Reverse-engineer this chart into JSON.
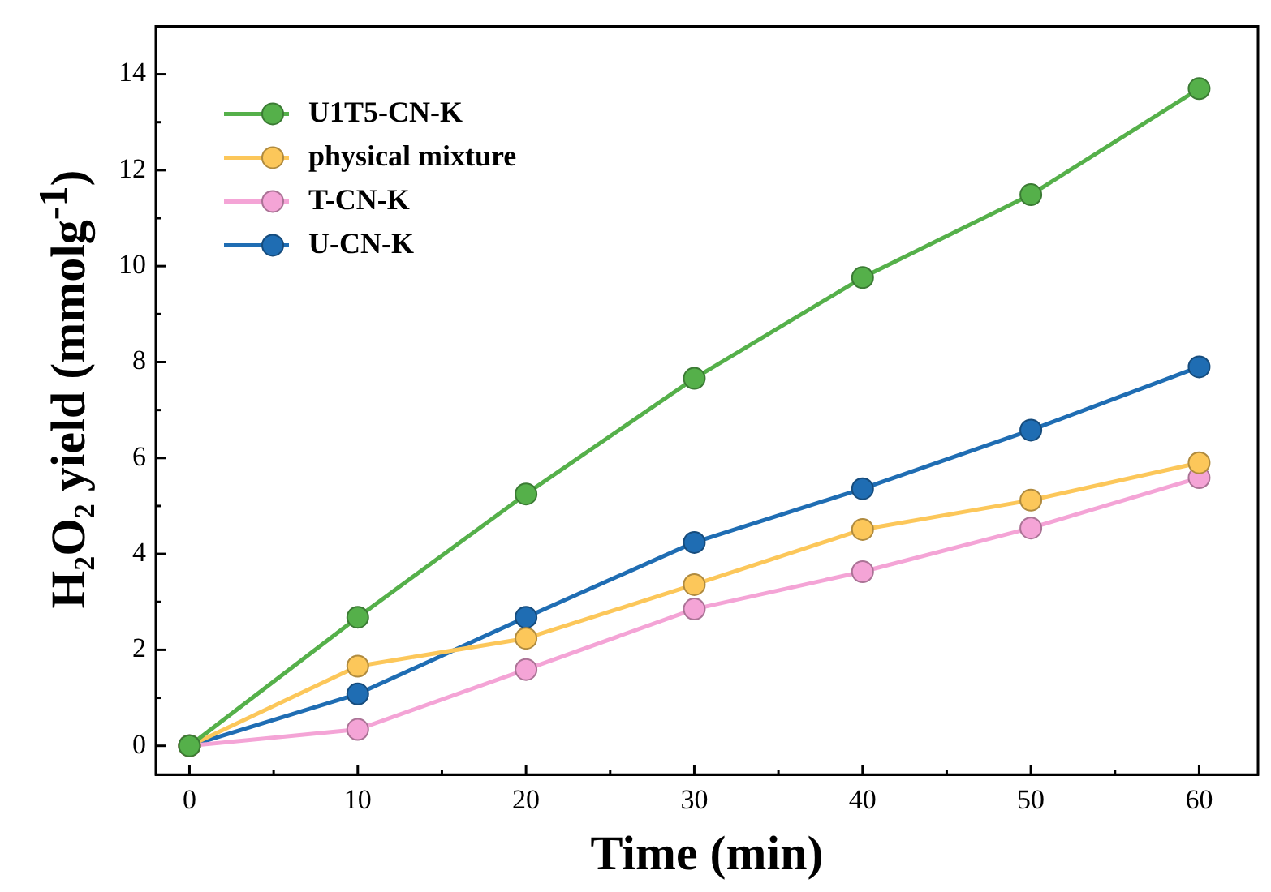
{
  "chart_data": {
    "type": "line",
    "xlabel": "Time (min)",
    "ylabel": "H₂O₂ yield (mmolg$^{-1}$)",
    "x": [
      0,
      10,
      20,
      30,
      40,
      50,
      60
    ],
    "xlim": [
      -2,
      63.5
    ],
    "ylim": [
      -0.6,
      15
    ],
    "xticks": [
      0,
      {
        "value": 5,
        "label": null
      },
      10,
      {
        "value": 15,
        "label": null
      },
      20,
      {
        "value": 25,
        "label": null
      },
      30,
      {
        "value": 35,
        "label": null
      },
      40,
      {
        "value": 45,
        "label": null
      },
      50,
      {
        "value": 55,
        "label": null
      },
      60
    ],
    "yticks": [
      0,
      {
        "value": 1,
        "label": null
      },
      2,
      {
        "value": 3,
        "label": null
      },
      4,
      {
        "value": 5,
        "label": null
      },
      6,
      {
        "value": 7,
        "label": null
      },
      8,
      {
        "value": 9,
        "label": null
      },
      10,
      {
        "value": 11,
        "label": null
      },
      12,
      {
        "value": 13,
        "label": null
      },
      14
    ],
    "series": [
      {
        "name": "U1T5-CN-K",
        "color": "#55b04a",
        "values": [
          0,
          2.68,
          5.25,
          7.66,
          9.76,
          11.49,
          13.7
        ]
      },
      {
        "name": "physical mixture",
        "color": "#fcc75a",
        "values": [
          0,
          1.66,
          2.24,
          3.36,
          4.51,
          5.12,
          5.9
        ]
      },
      {
        "name": "T-CN-K",
        "color": "#f4a4d6",
        "values": [
          0,
          0.34,
          1.59,
          2.85,
          3.63,
          4.54,
          5.59
        ]
      },
      {
        "name": "U-CN-K",
        "color": "#1f6db3",
        "values": [
          0,
          1.08,
          2.68,
          4.24,
          5.36,
          6.58,
          7.9
        ]
      }
    ],
    "legend": "top left",
    "marker": "circle",
    "grid": false
  }
}
